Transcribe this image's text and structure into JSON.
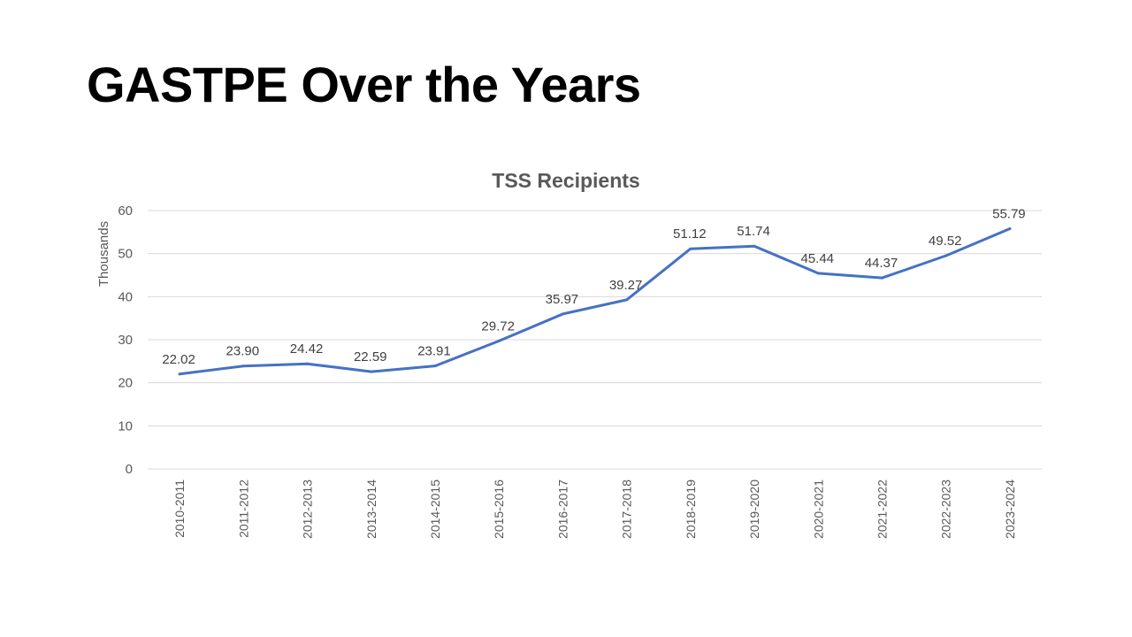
{
  "slide": {
    "title": "GASTPE Over the Years"
  },
  "colors": {
    "line": "#4472c4",
    "grid": "#d9d9d9",
    "text": "#595959",
    "label": "#404040"
  },
  "chart_data": {
    "type": "line",
    "title": "TSS Recipients",
    "xlabel": "",
    "ylabel": "Thousands",
    "ylim": [
      0,
      60
    ],
    "yticks": [
      0,
      10,
      20,
      30,
      40,
      50,
      60
    ],
    "grid": true,
    "legend": "none",
    "categories": [
      "2010-2011",
      "2011-2012",
      "2012-2013",
      "2013-2014",
      "2014-2015",
      "2015-2016",
      "2016-2017",
      "2017-2018",
      "2018-2019",
      "2019-2020",
      "2020-2021",
      "2021-2022",
      "2022-2023",
      "2023-2024"
    ],
    "series": [
      {
        "values": [
          22.02,
          23.9,
          24.42,
          22.59,
          23.91,
          29.72,
          35.97,
          39.27,
          51.12,
          51.74,
          45.44,
          44.37,
          49.52,
          55.79
        ],
        "labels": [
          "22.02",
          "23.90",
          "24.42",
          "22.59",
          "23.91",
          "29.72",
          "35.97",
          "39.27",
          "51.12",
          "51.74",
          "45.44",
          "44.37",
          "49.52",
          "55.79"
        ]
      }
    ]
  }
}
